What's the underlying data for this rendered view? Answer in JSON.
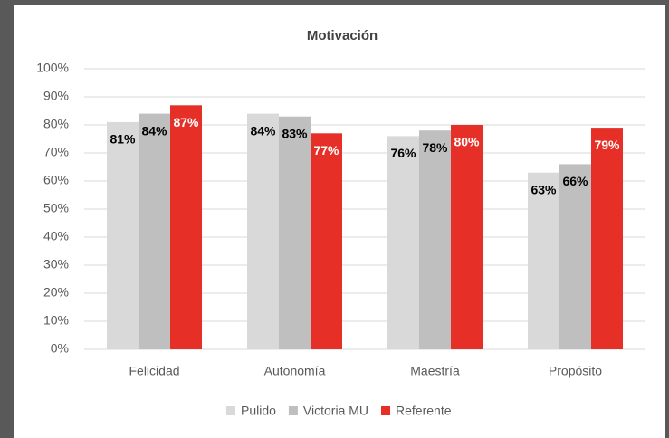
{
  "chart_data": {
    "type": "bar",
    "title": "Motivación",
    "categories": [
      "Felicidad",
      "Autonomía",
      "Maestría",
      "Propósito"
    ],
    "series": [
      {
        "name": "Pulido",
        "color": "#d9d9d9",
        "values": [
          81,
          84,
          76,
          63
        ],
        "value_labels": [
          "81%",
          "84%",
          "76%",
          "63%"
        ]
      },
      {
        "name": "Victoria MU",
        "color": "#bfbfbf",
        "values": [
          84,
          83,
          78,
          66
        ],
        "value_labels": [
          "84%",
          "83%",
          "78%",
          "66%"
        ]
      },
      {
        "name": "Referente",
        "color": "#e63027",
        "values": [
          87,
          77,
          80,
          79
        ],
        "value_labels": [
          "87%",
          "77%",
          "80%",
          "79%"
        ]
      }
    ],
    "ylim": [
      0,
      100
    ],
    "yticks": [
      {
        "value": 0,
        "label": "0%"
      },
      {
        "value": 10,
        "label": "10%"
      },
      {
        "value": 20,
        "label": "20%"
      },
      {
        "value": 30,
        "label": "30%"
      },
      {
        "value": 40,
        "label": "40%"
      },
      {
        "value": 50,
        "label": "50%"
      },
      {
        "value": 60,
        "label": "60%"
      },
      {
        "value": 70,
        "label": "70%"
      },
      {
        "value": 80,
        "label": "80%"
      },
      {
        "value": 90,
        "label": "90%"
      },
      {
        "value": 100,
        "label": "100%"
      }
    ],
    "grid": true,
    "legend": "bottom"
  }
}
